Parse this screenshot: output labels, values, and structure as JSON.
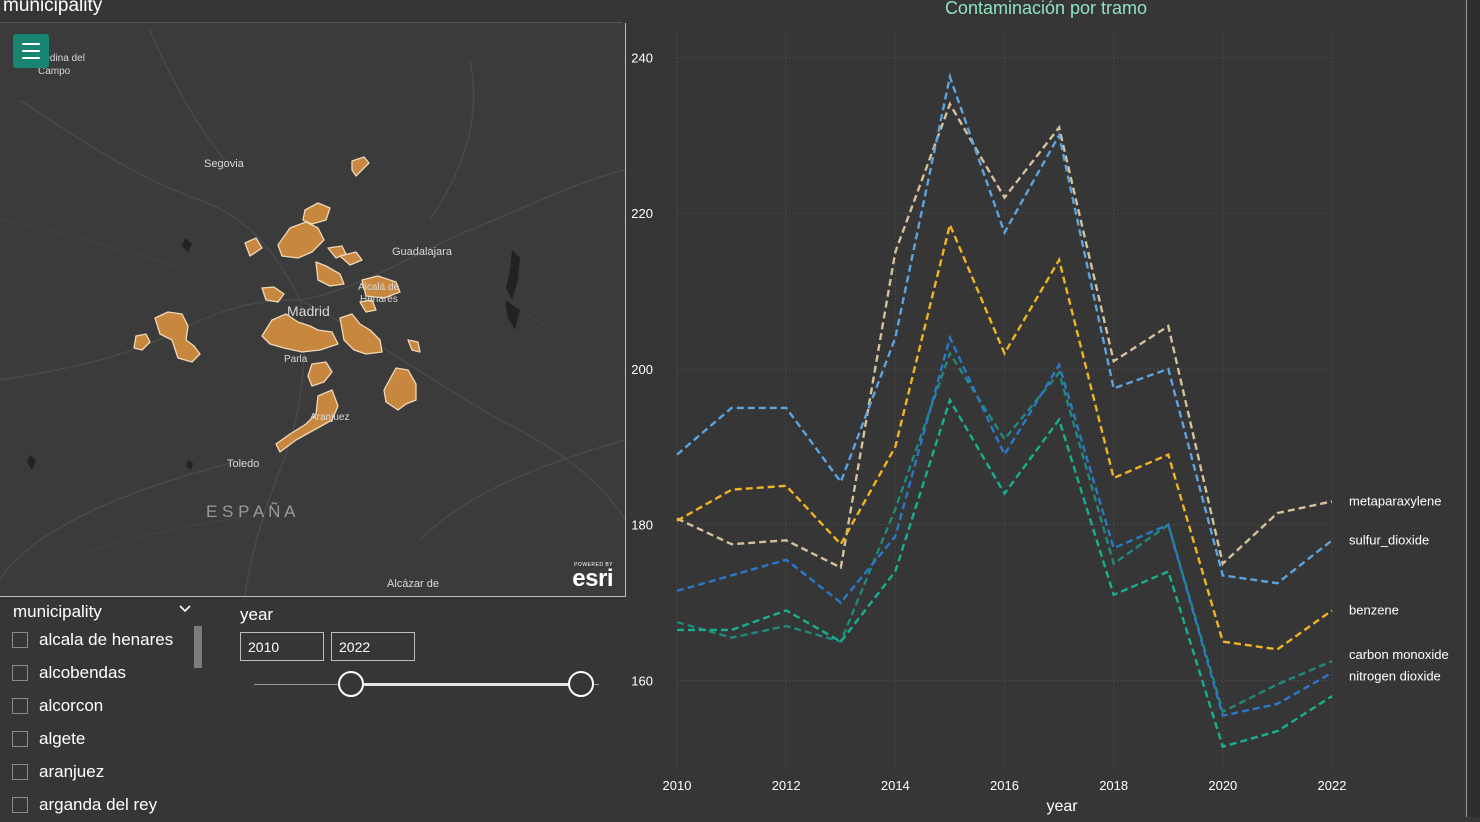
{
  "map": {
    "title": "municipality",
    "labels": {
      "medina": "Medina del",
      "medina2": "Campo",
      "segovia": "Segovia",
      "guadalajara": "Guadalajara",
      "alcala": "Alcalá de",
      "alcala2": "Henares",
      "madrid": "Madrid",
      "parla": "Parla",
      "aranjuez": "Aranjuez",
      "toledo": "Toledo",
      "espana": "E S P A Ñ A",
      "alcazar": "Alcázar de"
    },
    "esri_powered": "POWERED BY",
    "esri_word": "esri",
    "region_color": "#c8873e"
  },
  "filter": {
    "title": "municipality",
    "items": [
      {
        "label": "alcala de henares"
      },
      {
        "label": "alcobendas"
      },
      {
        "label": "alcorcon"
      },
      {
        "label": "algete"
      },
      {
        "label": "aranjuez"
      },
      {
        "label": "arganda del rey"
      }
    ]
  },
  "year_filter": {
    "title": "year",
    "start": "2010",
    "end": "2022"
  },
  "chart_data": {
    "type": "line",
    "title": "Contaminación por tramo",
    "xlabel": "year",
    "ylabel": "",
    "x": [
      2010,
      2011,
      2012,
      2013,
      2014,
      2015,
      2016,
      2017,
      2018,
      2019,
      2020,
      2021,
      2022
    ],
    "xticks": [
      "2010",
      "2012",
      "2014",
      "2016",
      "2018",
      "2020",
      "2022"
    ],
    "yticks": [
      "160",
      "180",
      "200",
      "220",
      "240"
    ],
    "xlim": [
      2010,
      2022
    ],
    "ylim": [
      148,
      243
    ],
    "grid": true,
    "legend": "end-labels-right",
    "series": [
      {
        "name": "metaparaxylene",
        "color": "#d4c19a",
        "values": [
          180.8,
          177.5,
          178,
          174.5,
          215,
          234,
          222,
          231,
          201,
          205.5,
          175,
          181.5,
          183
        ]
      },
      {
        "name": "sulfur_dioxide",
        "color": "#5ba4e0",
        "values": [
          189,
          195,
          195,
          185.5,
          204,
          237.5,
          217.5,
          230,
          197.5,
          200,
          173.5,
          172.5,
          178
        ]
      },
      {
        "name": "benzene",
        "color": "#f0b323",
        "values": [
          180.5,
          184.5,
          185,
          177.5,
          190,
          218.5,
          202,
          214,
          186,
          189,
          165,
          164,
          169
        ]
      },
      {
        "name": "carbon monoxide",
        "color": "#1f8a7c",
        "values": [
          167.5,
          165.5,
          167,
          165,
          182,
          202,
          191,
          199.5,
          175,
          180,
          156,
          159.5,
          162.5
        ]
      },
      {
        "name": "nitrogen dioxide",
        "color": "#2b78c8",
        "values": [
          171.5,
          173.5,
          175.5,
          170,
          178.5,
          204,
          189,
          200.5,
          177,
          180,
          155.5,
          157,
          161
        ]
      },
      {
        "name": "",
        "color": "#17b08f",
        "values": [
          166.5,
          166.5,
          169,
          165,
          174,
          196,
          184,
          193.5,
          171,
          174,
          151.5,
          153.5,
          158
        ]
      }
    ]
  }
}
